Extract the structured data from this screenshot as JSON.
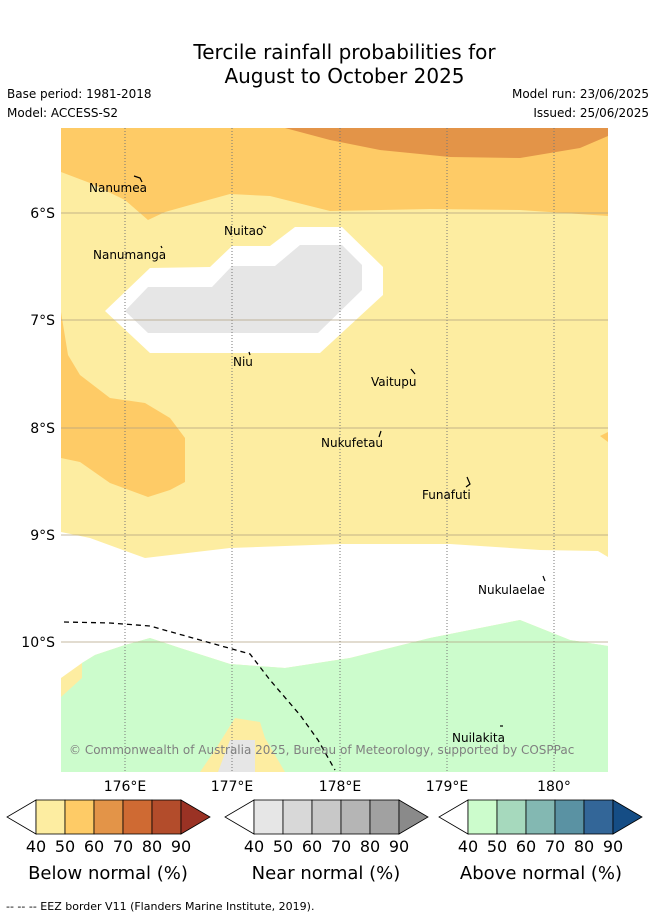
{
  "title_line1": "Tercile rainfall probabilities for",
  "title_line2": "August to October 2025",
  "base_period": "Base period: 1981-2018",
  "model": "Model: ACCESS-S2",
  "model_run": "Model run: 23/06/2025",
  "issued": "Issued: 25/06/2025",
  "lat_labels": [
    "6°S",
    "7°S",
    "8°S",
    "9°S",
    "10°S"
  ],
  "lon_labels": [
    "176°E",
    "177°E",
    "178°E",
    "179°E",
    "180°"
  ],
  "places": [
    "Nanumea",
    "Nuitao",
    "Nanumanga",
    "Niu",
    "Vaitupu",
    "Nukufetau",
    "Funafuti",
    "Nukulaelae",
    "Nuilakita"
  ],
  "copyright": "© Commonwealth of Australia 2025, Bureau of Meteorology, supported by COSPPac",
  "legends": [
    {
      "label": "Below normal (%)",
      "ticks": [
        "40",
        "50",
        "60",
        "70",
        "80",
        "90"
      ],
      "colors": [
        "#fdeda1",
        "#fecb66",
        "#e39448",
        "#cf6a33",
        "#b34c2b",
        "#9a3224"
      ]
    },
    {
      "label": "Near normal (%)",
      "ticks": [
        "40",
        "50",
        "60",
        "70",
        "80",
        "90"
      ],
      "colors": [
        "#e6e6e6",
        "#d8d8d8",
        "#c8c8c8",
        "#b5b5b5",
        "#a1a1a1",
        "#8a8a8a"
      ]
    },
    {
      "label": "Above normal (%)",
      "ticks": [
        "40",
        "50",
        "60",
        "70",
        "80",
        "90"
      ],
      "colors": [
        "#ccfccc",
        "#a6d9bd",
        "#83b8b2",
        "#5a92a3",
        "#336698",
        "#154d85"
      ]
    }
  ],
  "footnote": "--  --  -- EEZ border V11 (Flanders Marine Institute, 2019)."
}
